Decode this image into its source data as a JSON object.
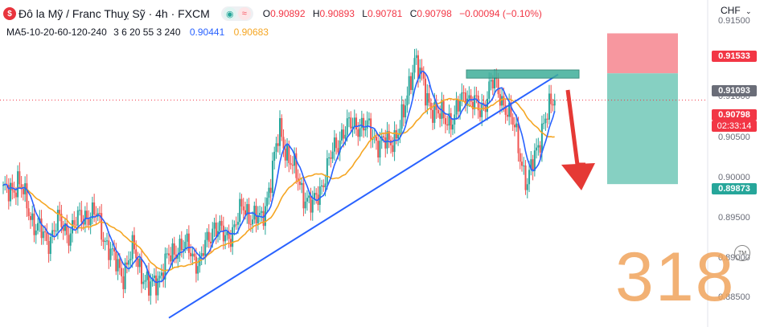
{
  "header": {
    "logo_glyph": "$",
    "symbol": "Đô la Mỹ / Franc Thuỵ Sỹ · 4h · FXCM",
    "open_label": "O",
    "open": "0.90892",
    "high_label": "H",
    "high": "0.90893",
    "low_label": "L",
    "low": "0.90781",
    "close_label": "C",
    "close": "0.90798",
    "change": "−0.00094 (−0.10%)"
  },
  "ma_legend": {
    "label": "MA5-10-20-60-120-240",
    "params": "3 6 20 55 3 240",
    "value_blue": "0.90441",
    "value_orange": "0.90683"
  },
  "currency": "CHF",
  "price_tags": {
    "stop": "0.91533",
    "entry": "0.91093",
    "current": "0.90798",
    "countdown": "02:33:14",
    "target": "0.89873"
  },
  "watermark": "318",
  "tm_badge": "TM",
  "colors": {
    "up": "#26a69a",
    "down": "#ef5350",
    "ma_fast": "#2962ff",
    "ma_slow": "#f5a623",
    "trendline": "#2962ff",
    "stop_zone": "#f7919a",
    "target_zone": "#7fcdbf",
    "arrow": "#e53935"
  },
  "chart_data": {
    "type": "candlestick",
    "ylim": [
      0.883,
      0.919
    ],
    "y_ticks": [
      "0.91500",
      "0.91000",
      "0.90500",
      "0.90000",
      "0.89500",
      "0.89000",
      "0.88500"
    ],
    "y_tick_values": [
      0.915,
      0.91,
      0.905,
      0.9,
      0.895,
      0.89,
      0.885
    ],
    "current_price": 0.90798,
    "short_position": {
      "entry": 0.91093,
      "stop": 0.91533,
      "target": 0.89873
    },
    "resistance_zone": [
      0.9104,
      0.9113
    ],
    "trendline": {
      "from_price": 0.884,
      "to_price": 0.9108
    }
  }
}
